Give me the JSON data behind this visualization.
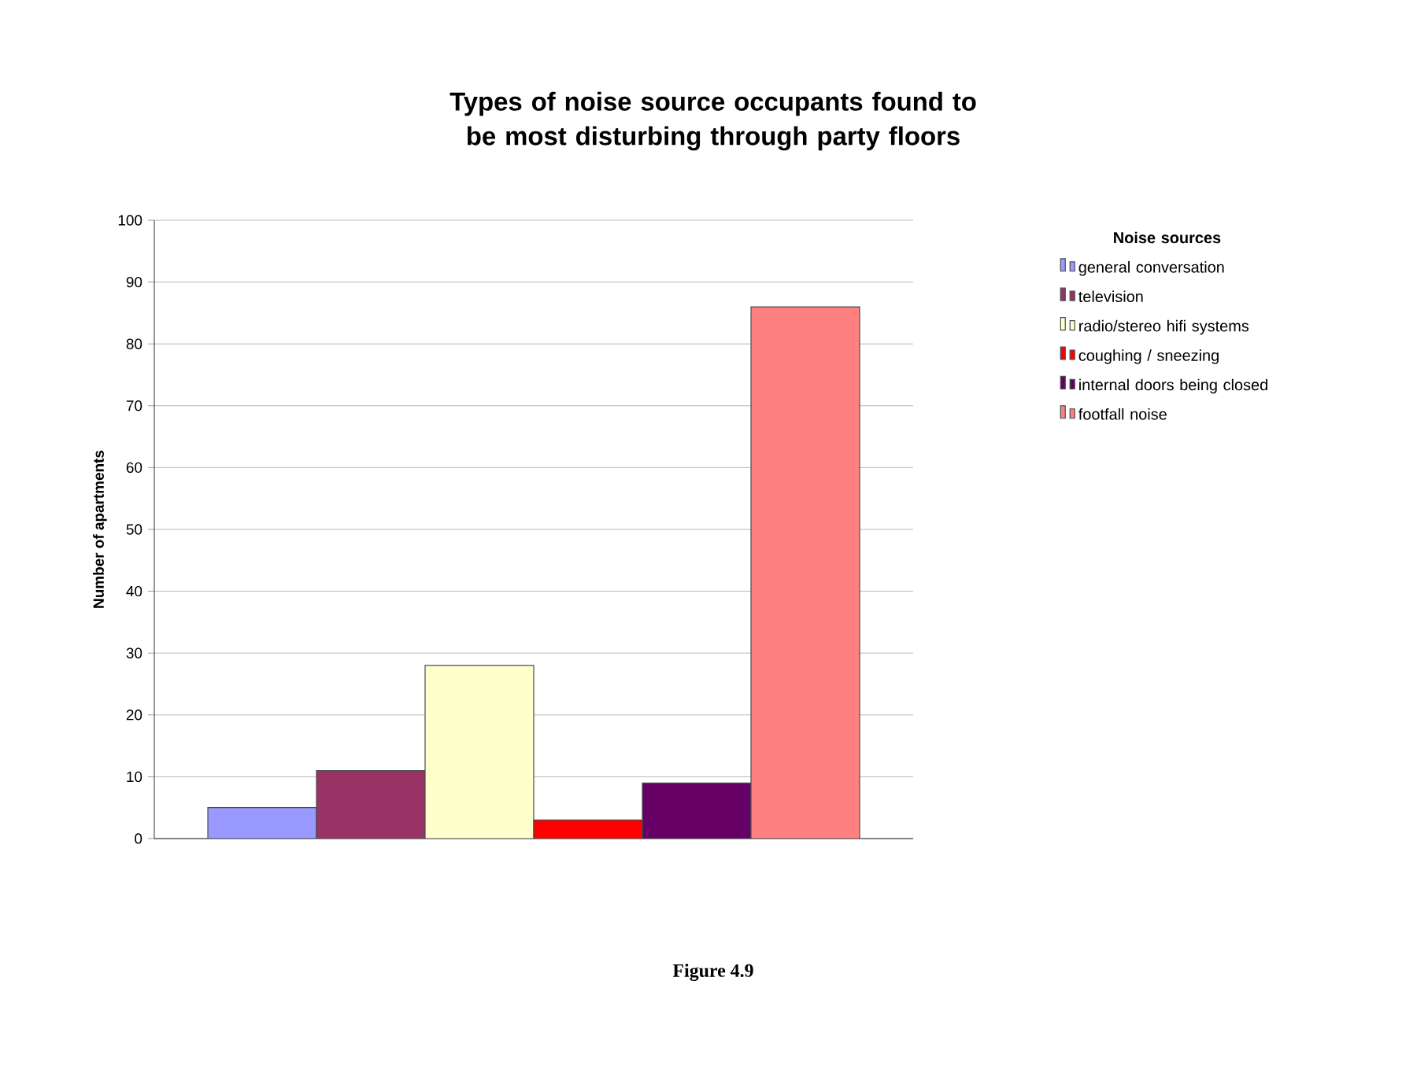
{
  "chart_data": {
    "type": "bar",
    "title": "Types of noise source occupants found to be most disturbing through party floors",
    "ylabel": "Number of apartments",
    "legend_title": "Noise sources",
    "categories": [
      null
    ],
    "series": [
      {
        "name": "general conversation",
        "color": "#9999ff",
        "values": [
          5
        ]
      },
      {
        "name": "television",
        "color": "#993366",
        "values": [
          11
        ]
      },
      {
        "name": "radio/stereo hifi systems",
        "color": "#ffffcc",
        "values": [
          28
        ]
      },
      {
        "name": "coughing / sneezing",
        "color": "#ff0000",
        "values": [
          3
        ]
      },
      {
        "name": "internal doors being closed",
        "color": "#660066",
        "values": [
          9
        ]
      },
      {
        "name": "footfall noise",
        "color": "#ff8080",
        "values": [
          86
        ]
      }
    ],
    "ylim": [
      0,
      100
    ],
    "yticks": [
      0,
      10,
      20,
      30,
      40,
      50,
      60,
      70,
      80,
      90,
      100
    ],
    "grid": "y",
    "legend": "right",
    "annotations": [
      "Figure 4.9"
    ]
  }
}
